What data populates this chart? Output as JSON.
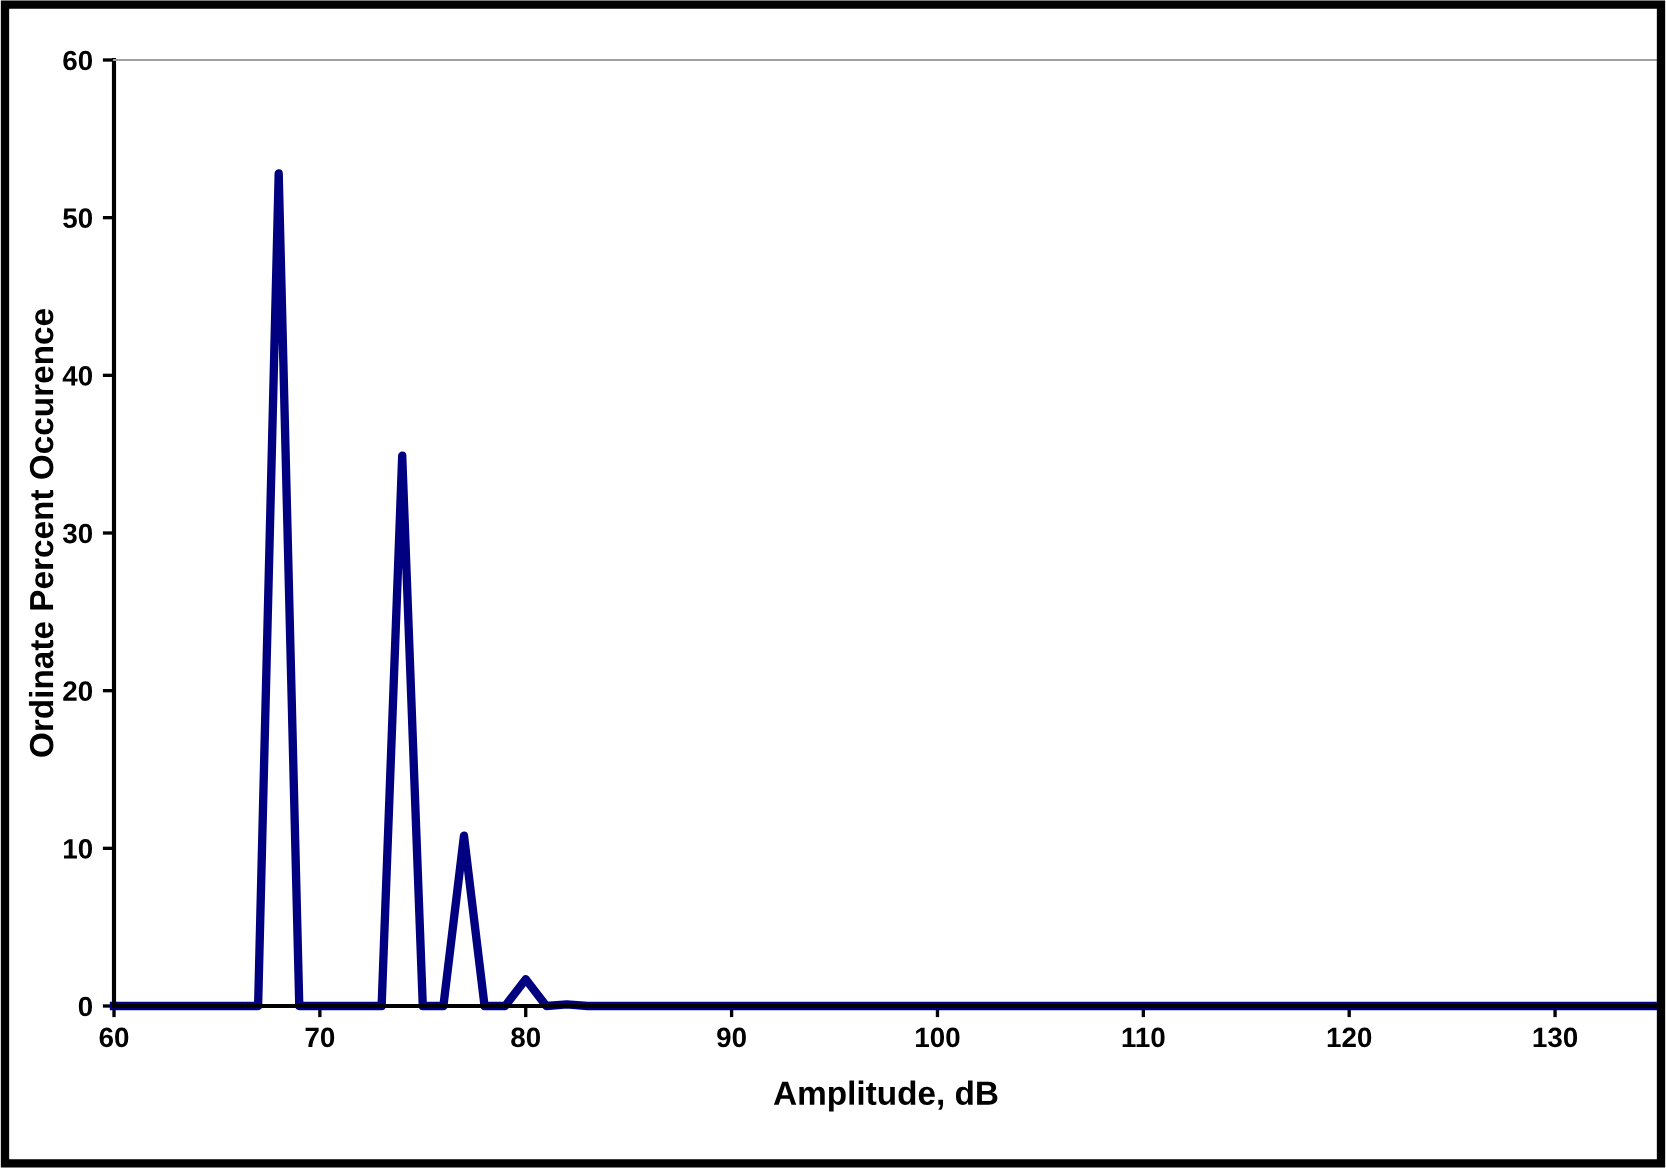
{
  "chart_data": {
    "type": "line",
    "xlabel": "Amplitude, dB",
    "ylabel": "Ordinate Percent Occurence",
    "x": [
      60,
      61,
      62,
      63,
      64,
      65,
      66,
      67,
      68,
      69,
      70,
      71,
      72,
      73,
      74,
      75,
      76,
      77,
      78,
      79,
      80,
      81,
      82,
      83,
      84,
      85,
      86,
      87,
      88,
      89,
      90,
      91,
      92,
      93,
      94,
      95,
      96,
      97,
      98,
      99,
      100,
      101,
      102,
      103,
      104,
      105,
      106,
      107,
      108,
      109,
      110,
      111,
      112,
      113,
      114,
      115,
      116,
      117,
      118,
      119,
      120,
      121,
      122,
      123,
      124,
      125,
      126,
      127,
      128,
      129,
      130,
      131,
      132,
      133,
      134,
      135
    ],
    "series": [
      {
        "color": "#000080",
        "values": [
          0,
          0,
          0,
          0,
          0,
          0,
          0,
          0,
          52.8,
          0,
          0,
          0,
          0,
          0,
          34.9,
          0,
          0,
          10.8,
          0,
          0,
          1.7,
          0,
          0.1,
          0,
          0,
          0,
          0,
          0,
          0,
          0,
          0,
          0,
          0,
          0,
          0,
          0,
          0,
          0,
          0,
          0,
          0,
          0,
          0,
          0,
          0,
          0,
          0,
          0,
          0,
          0,
          0,
          0,
          0,
          0,
          0,
          0,
          0,
          0,
          0,
          0,
          0,
          0,
          0,
          0,
          0,
          0,
          0,
          0,
          0,
          0,
          0,
          0,
          0,
          0,
          0,
          0
        ]
      }
    ],
    "xlim": [
      60,
      135
    ],
    "ylim": [
      0,
      60
    ],
    "xticks": [
      60,
      70,
      80,
      90,
      100,
      110,
      120,
      130
    ],
    "yticks": [
      0,
      10,
      20,
      30,
      40,
      50,
      60
    ],
    "grid": false,
    "marker": "none",
    "line_style": "solid"
  }
}
